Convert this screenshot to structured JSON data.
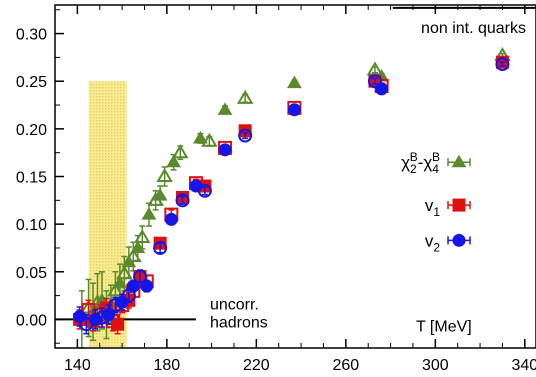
{
  "chart_data": {
    "type": "scatter",
    "xlabel": "T [MeV]",
    "ylabel": "",
    "xlim": [
      130,
      345
    ],
    "ylim": [
      -0.03,
      0.33
    ],
    "x_ticks": [
      {
        "value": 140,
        "label": "140"
      },
      {
        "value": 180,
        "label": "180"
      },
      {
        "value": 220,
        "label": "220"
      },
      {
        "value": 260,
        "label": "260"
      },
      {
        "value": 300,
        "label": "300"
      },
      {
        "value": 340,
        "label": "340"
      }
    ],
    "y_ticks": [
      {
        "value": 0.0,
        "label": "0.00"
      },
      {
        "value": 0.05,
        "label": "0.05"
      },
      {
        "value": 0.1,
        "label": "0.10"
      },
      {
        "value": 0.15,
        "label": "0.15"
      },
      {
        "value": 0.2,
        "label": "0.20"
      },
      {
        "value": 0.25,
        "label": "0.25"
      },
      {
        "value": 0.3,
        "label": "0.30"
      }
    ],
    "grid": false,
    "legend_position": "right",
    "band": {
      "x_range": [
        145,
        162
      ],
      "y_range": [
        -0.03,
        0.25
      ],
      "color": "#f1dc60"
    },
    "reference_lines": [
      {
        "label": "non int. quarks",
        "y": 0.327,
        "x_range": [
          281,
          345
        ]
      },
      {
        "label_lines": [
          "uncorr.",
          "hadrons"
        ],
        "y": 0.0,
        "x_range": [
          130,
          193
        ]
      }
    ],
    "series": [
      {
        "name_main": "χ",
        "name_parts": [
          {
            "t": "χ"
          },
          {
            "t": "2",
            "s": "sub"
          },
          {
            "t": "B",
            "s": "sup"
          },
          {
            "t": "-χ"
          },
          {
            "t": "4",
            "s": "sub"
          },
          {
            "t": "B",
            "s": "sup"
          }
        ],
        "color": "#5a8a2c",
        "marker": "triangle",
        "points": [
          {
            "x": 142,
            "y": 0.0,
            "err": 0.03
          },
          {
            "x": 145,
            "y": 0.012,
            "err": 0.03
          },
          {
            "x": 147,
            "y": 0.008,
            "err": 0.03
          },
          {
            "x": 149,
            "y": 0.018,
            "err": 0.03
          },
          {
            "x": 151,
            "y": 0.02,
            "err": 0.03
          },
          {
            "x": 153,
            "y": 0.005,
            "err": 0.025
          },
          {
            "x": 155,
            "y": 0.016,
            "err": 0.02
          },
          {
            "x": 157,
            "y": 0.03,
            "err": 0.02
          },
          {
            "x": 159,
            "y": 0.038,
            "err": 0.02
          },
          {
            "x": 161,
            "y": 0.048,
            "err": 0.018
          },
          {
            "x": 163,
            "y": 0.06,
            "err": 0.016
          },
          {
            "x": 165,
            "y": 0.066,
            "err": 0.015
          },
          {
            "x": 167,
            "y": 0.075,
            "err": 0.013
          },
          {
            "x": 169,
            "y": 0.086,
            "err": 0.012
          },
          {
            "x": 172,
            "y": 0.11,
            "err": 0.012
          },
          {
            "x": 175,
            "y": 0.125,
            "err": 0.01
          },
          {
            "x": 177,
            "y": 0.13,
            "err": 0.01
          },
          {
            "x": 179,
            "y": 0.15,
            "err": 0.01
          },
          {
            "x": 183,
            "y": 0.165,
            "err": 0.008
          },
          {
            "x": 186,
            "y": 0.175,
            "err": 0.007
          },
          {
            "x": 195,
            "y": 0.19,
            "err": 0.005
          },
          {
            "x": 199,
            "y": 0.187,
            "err": 0.005
          },
          {
            "x": 206,
            "y": 0.22,
            "err": 0.004
          },
          {
            "x": 215,
            "y": 0.232,
            "err": 0.004
          },
          {
            "x": 237,
            "y": 0.248,
            "err": 0.003
          },
          {
            "x": 273,
            "y": 0.262,
            "err": 0.003
          },
          {
            "x": 276,
            "y": 0.255,
            "err": 0.003
          },
          {
            "x": 330,
            "y": 0.277,
            "err": 0.002
          }
        ]
      },
      {
        "name_parts": [
          {
            "t": "v"
          },
          {
            "t": "1",
            "s": "sub"
          }
        ],
        "color": "#e01010",
        "marker": "square",
        "points": [
          {
            "x": 141,
            "y": 0.0,
            "err": 0.01
          },
          {
            "x": 145,
            "y": 0.01,
            "err": 0.01
          },
          {
            "x": 147,
            "y": -0.002,
            "err": 0.01
          },
          {
            "x": 150,
            "y": 0.005,
            "err": 0.01
          },
          {
            "x": 153,
            "y": 0.012,
            "err": 0.01
          },
          {
            "x": 156,
            "y": -0.002,
            "err": 0.01
          },
          {
            "x": 158,
            "y": -0.005,
            "err": 0.01
          },
          {
            "x": 160,
            "y": 0.015,
            "err": 0.008
          },
          {
            "x": 163,
            "y": 0.02,
            "err": 0.008
          },
          {
            "x": 165,
            "y": 0.03,
            "err": 0.007
          },
          {
            "x": 168,
            "y": 0.045,
            "err": 0.007
          },
          {
            "x": 171,
            "y": 0.04,
            "err": 0.006
          },
          {
            "x": 177,
            "y": 0.08,
            "err": 0.005
          },
          {
            "x": 182,
            "y": 0.11,
            "err": 0.005
          },
          {
            "x": 187,
            "y": 0.128,
            "err": 0.004
          },
          {
            "x": 193,
            "y": 0.143,
            "err": 0.004
          },
          {
            "x": 197,
            "y": 0.14,
            "err": 0.004
          },
          {
            "x": 206,
            "y": 0.18,
            "err": 0.003
          },
          {
            "x": 215,
            "y": 0.198,
            "err": 0.003
          },
          {
            "x": 237,
            "y": 0.222,
            "err": 0.003
          },
          {
            "x": 273,
            "y": 0.25,
            "err": 0.003
          },
          {
            "x": 276,
            "y": 0.245,
            "err": 0.003
          },
          {
            "x": 330,
            "y": 0.27,
            "err": 0.002
          }
        ]
      },
      {
        "name_parts": [
          {
            "t": "v"
          },
          {
            "t": "2",
            "s": "sub"
          }
        ],
        "color": "#1515e8",
        "marker": "circle",
        "points": [
          {
            "x": 141,
            "y": 0.003,
            "err": 0.01
          },
          {
            "x": 144,
            "y": -0.005,
            "err": 0.01
          },
          {
            "x": 148,
            "y": 0.0,
            "err": 0.01
          },
          {
            "x": 151,
            "y": 0.002,
            "err": 0.01
          },
          {
            "x": 154,
            "y": 0.005,
            "err": 0.01
          },
          {
            "x": 157,
            "y": 0.015,
            "err": 0.008
          },
          {
            "x": 160,
            "y": 0.018,
            "err": 0.008
          },
          {
            "x": 163,
            "y": 0.025,
            "err": 0.007
          },
          {
            "x": 165,
            "y": 0.035,
            "err": 0.006
          },
          {
            "x": 168,
            "y": 0.045,
            "err": 0.006
          },
          {
            "x": 171,
            "y": 0.035,
            "err": 0.006
          },
          {
            "x": 177,
            "y": 0.075,
            "err": 0.005
          },
          {
            "x": 182,
            "y": 0.105,
            "err": 0.005
          },
          {
            "x": 187,
            "y": 0.125,
            "err": 0.004
          },
          {
            "x": 193,
            "y": 0.14,
            "err": 0.004
          },
          {
            "x": 197,
            "y": 0.135,
            "err": 0.004
          },
          {
            "x": 206,
            "y": 0.178,
            "err": 0.003
          },
          {
            "x": 215,
            "y": 0.193,
            "err": 0.003
          },
          {
            "x": 237,
            "y": 0.22,
            "err": 0.003
          },
          {
            "x": 273,
            "y": 0.25,
            "err": 0.003
          },
          {
            "x": 276,
            "y": 0.242,
            "err": 0.003
          },
          {
            "x": 330,
            "y": 0.268,
            "err": 0.002
          }
        ]
      }
    ]
  }
}
